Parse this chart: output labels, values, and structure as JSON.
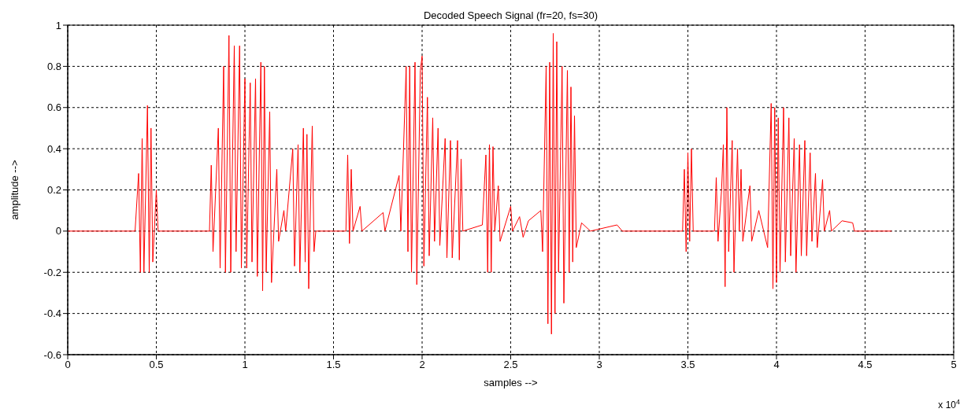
{
  "chart_data": {
    "type": "line",
    "title": "Decoded Speech Signal (fr=20, fs=30)",
    "xlabel": "samples -->",
    "ylabel": "amplitude -->",
    "annotations": [
      "x 10$^{4}$"
    ],
    "x": [
      0,
      0.3,
      0.38,
      0.4,
      0.41,
      0.42,
      0.43,
      0.45,
      0.46,
      0.47,
      0.48,
      0.5,
      0.51,
      0.8,
      0.81,
      0.82,
      0.85,
      0.86,
      0.88,
      0.89,
      0.91,
      0.92,
      0.94,
      0.95,
      0.97,
      0.98,
      1.0,
      1.01,
      1.03,
      1.04,
      1.06,
      1.07,
      1.09,
      1.1,
      1.11,
      1.12,
      1.14,
      1.15,
      1.18,
      1.19,
      1.22,
      1.23,
      1.27,
      1.28,
      1.3,
      1.31,
      1.33,
      1.34,
      1.35,
      1.36,
      1.38,
      1.39,
      1.4,
      1.57,
      1.58,
      1.59,
      1.6,
      1.61,
      1.65,
      1.66,
      1.78,
      1.79,
      1.87,
      1.88,
      1.91,
      1.92,
      1.93,
      1.94,
      1.96,
      1.97,
      1.99,
      2.0,
      2.01,
      2.03,
      2.04,
      2.06,
      2.07,
      2.09,
      2.1,
      2.13,
      2.14,
      2.16,
      2.17,
      2.2,
      2.21,
      2.22,
      2.23,
      2.34,
      2.36,
      2.37,
      2.38,
      2.39,
      2.4,
      2.41,
      2.43,
      2.44,
      2.5,
      2.51,
      2.55,
      2.57,
      2.6,
      2.67,
      2.68,
      2.7,
      2.71,
      2.72,
      2.73,
      2.74,
      2.75,
      2.76,
      2.77,
      2.79,
      2.8,
      2.82,
      2.83,
      2.84,
      2.85,
      2.86,
      2.87,
      2.9,
      2.95,
      3.1,
      3.13,
      3.47,
      3.48,
      3.49,
      3.5,
      3.51,
      3.52,
      3.53,
      3.65,
      3.66,
      3.67,
      3.69,
      3.7,
      3.71,
      3.72,
      3.73,
      3.75,
      3.76,
      3.78,
      3.79,
      3.8,
      3.81,
      3.85,
      3.86,
      3.9,
      3.95,
      3.97,
      3.98,
      3.99,
      4.0,
      4.01,
      4.02,
      4.04,
      4.05,
      4.07,
      4.08,
      4.1,
      4.11,
      4.13,
      4.14,
      4.16,
      4.17,
      4.19,
      4.2,
      4.22,
      4.23,
      4.26,
      4.27,
      4.3,
      4.31,
      4.37,
      4.43,
      4.44,
      4.65
    ],
    "series": [
      {
        "color": "#ff0000",
        "values": [
          0,
          0,
          0,
          0.28,
          -0.2,
          0.45,
          -0.2,
          0.61,
          -0.2,
          0.5,
          -0.15,
          0.2,
          0,
          0,
          0.32,
          -0.1,
          0.5,
          -0.18,
          0.8,
          -0.2,
          0.95,
          -0.2,
          0.9,
          -0.1,
          0.9,
          -0.18,
          0.74,
          -0.18,
          0.72,
          -0.15,
          0.74,
          -0.22,
          0.82,
          -0.29,
          0.8,
          -0.2,
          0.58,
          -0.25,
          0.3,
          -0.05,
          0.1,
          0,
          0.4,
          -0.17,
          0.42,
          -0.2,
          0.5,
          -0.15,
          0.47,
          -0.28,
          0.51,
          -0.1,
          0,
          0,
          0.37,
          -0.06,
          0.3,
          0,
          0.12,
          0,
          0.09,
          0,
          0.27,
          0,
          0.8,
          -0.1,
          0.8,
          -0.2,
          0.82,
          -0.26,
          0.78,
          0.85,
          -0.17,
          0.65,
          -0.12,
          0.55,
          -0.05,
          0.5,
          -0.07,
          0.45,
          -0.13,
          0.44,
          -0.13,
          0.44,
          -0.14,
          0.35,
          0,
          0.03,
          0.37,
          -0.2,
          0.42,
          -0.2,
          0.41,
          0,
          0.22,
          -0.05,
          0.12,
          0,
          0.07,
          -0.03,
          0.05,
          0.1,
          -0.1,
          0.8,
          -0.45,
          0.82,
          -0.5,
          0.96,
          -0.4,
          0.92,
          -0.2,
          0.8,
          -0.35,
          0.78,
          -0.2,
          0.7,
          -0.15,
          0.56,
          -0.08,
          0.04,
          0,
          0.03,
          0,
          0,
          0.3,
          -0.1,
          0.38,
          -0.05,
          0.4,
          0,
          0,
          0.26,
          -0.05,
          0.2,
          0.42,
          -0.27,
          0.6,
          -0.1,
          0.44,
          -0.2,
          0.4,
          0,
          0.3,
          -0.05,
          0.22,
          -0.05,
          0.1,
          -0.08,
          0.62,
          -0.28,
          0.6,
          -0.25,
          0.55,
          -0.2,
          0.6,
          -0.15,
          0.55,
          -0.12,
          0.45,
          -0.2,
          0.42,
          -0.12,
          0.44,
          -0.12,
          0.38,
          -0.05,
          0.28,
          -0.08,
          0.25,
          0,
          0.1,
          0,
          0.05,
          0.04,
          0,
          0
        ]
      }
    ],
    "xlim": [
      0,
      5
    ],
    "xticks": [
      0,
      0.5,
      1,
      1.5,
      2,
      2.5,
      3,
      3.5,
      4,
      4.5,
      5
    ],
    "ylim": [
      -0.6,
      1
    ],
    "yticks": [
      -0.6,
      -0.4,
      -0.2,
      0,
      0.2,
      0.4,
      0.6,
      0.8,
      1
    ],
    "grid": true,
    "marker": "none",
    "line_style": "solid"
  }
}
